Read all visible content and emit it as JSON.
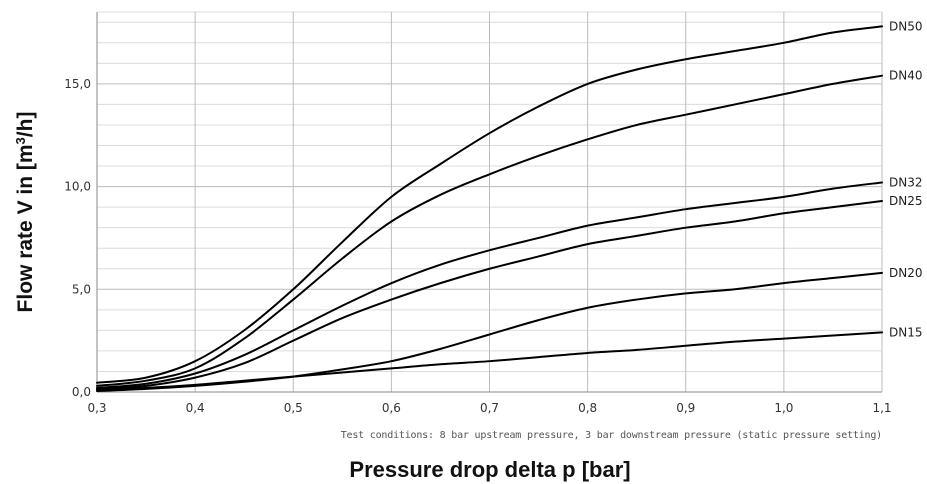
{
  "chart_data": {
    "type": "line",
    "xlabel": "Pressure drop delta p [bar]",
    "ylabel_main": "Flow rate V in [m",
    "ylabel_sup": "3",
    "ylabel_end": "/h]",
    "note": "Test conditions: 8 bar upstream pressure, 3 bar downstream pressure (static pressure setting)",
    "xlim": [
      0.3,
      1.1
    ],
    "ylim": [
      0,
      18.5
    ],
    "x_ticks": [
      0.3,
      0.4,
      0.5,
      0.6,
      0.7,
      0.8,
      0.9,
      1.0,
      1.1
    ],
    "x_tick_labels": [
      "0,3",
      "0,4",
      "0,5",
      "0,6",
      "0,7",
      "0,8",
      "0,9",
      "1,0",
      "1,1"
    ],
    "y_ticks": [
      0,
      5,
      10,
      15
    ],
    "y_tick_labels": [
      "0,0",
      "5,0",
      "10,0",
      "15,0"
    ],
    "grid": true,
    "legend": "series labels at right end of lines",
    "series": [
      {
        "name": "DN50",
        "x": [
          0.3,
          0.35,
          0.4,
          0.45,
          0.5,
          0.55,
          0.6,
          0.65,
          0.7,
          0.75,
          0.8,
          0.85,
          0.9,
          0.95,
          1.0,
          1.05,
          1.1
        ],
        "y": [
          0.45,
          0.7,
          1.5,
          3.0,
          5.0,
          7.3,
          9.5,
          11.1,
          12.6,
          13.9,
          15.0,
          15.7,
          16.2,
          16.6,
          17.0,
          17.5,
          17.8
        ]
      },
      {
        "name": "DN40",
        "x": [
          0.3,
          0.35,
          0.4,
          0.45,
          0.5,
          0.55,
          0.6,
          0.65,
          0.7,
          0.75,
          0.8,
          0.85,
          0.9,
          0.95,
          1.0,
          1.05,
          1.1
        ],
        "y": [
          0.3,
          0.55,
          1.15,
          2.6,
          4.5,
          6.5,
          8.3,
          9.6,
          10.6,
          11.5,
          12.3,
          13.0,
          13.5,
          14.0,
          14.5,
          15.0,
          15.4
        ]
      },
      {
        "name": "DN32",
        "x": [
          0.3,
          0.35,
          0.4,
          0.45,
          0.5,
          0.55,
          0.6,
          0.65,
          0.7,
          0.75,
          0.8,
          0.85,
          0.9,
          0.95,
          1.0,
          1.05,
          1.1
        ],
        "y": [
          0.2,
          0.4,
          0.9,
          1.8,
          3.0,
          4.2,
          5.3,
          6.2,
          6.9,
          7.5,
          8.1,
          8.5,
          8.9,
          9.2,
          9.5,
          9.9,
          10.2
        ]
      },
      {
        "name": "DN25",
        "x": [
          0.3,
          0.35,
          0.4,
          0.45,
          0.5,
          0.55,
          0.6,
          0.65,
          0.7,
          0.75,
          0.8,
          0.85,
          0.9,
          0.95,
          1.0,
          1.05,
          1.1
        ],
        "y": [
          0.15,
          0.3,
          0.7,
          1.4,
          2.5,
          3.6,
          4.5,
          5.3,
          6.0,
          6.6,
          7.2,
          7.6,
          8.0,
          8.3,
          8.7,
          9.0,
          9.3
        ]
      },
      {
        "name": "DN20",
        "x": [
          0.3,
          0.35,
          0.4,
          0.45,
          0.5,
          0.55,
          0.6,
          0.65,
          0.7,
          0.75,
          0.8,
          0.85,
          0.9,
          0.95,
          1.0,
          1.05,
          1.1
        ],
        "y": [
          0.05,
          0.15,
          0.3,
          0.5,
          0.75,
          1.1,
          1.5,
          2.1,
          2.8,
          3.5,
          4.1,
          4.5,
          4.8,
          5.0,
          5.3,
          5.55,
          5.8
        ]
      },
      {
        "name": "DN15",
        "x": [
          0.3,
          0.35,
          0.4,
          0.45,
          0.5,
          0.55,
          0.6,
          0.65,
          0.7,
          0.75,
          0.8,
          0.85,
          0.9,
          0.95,
          1.0,
          1.05,
          1.1
        ],
        "y": [
          0.1,
          0.2,
          0.35,
          0.55,
          0.75,
          0.95,
          1.15,
          1.35,
          1.5,
          1.7,
          1.9,
          2.05,
          2.25,
          2.45,
          2.6,
          2.75,
          2.9
        ]
      }
    ]
  },
  "colors": {
    "line": "#000000",
    "grid_major": "#bdbdbd",
    "grid_minor": "#dcdcdc"
  }
}
